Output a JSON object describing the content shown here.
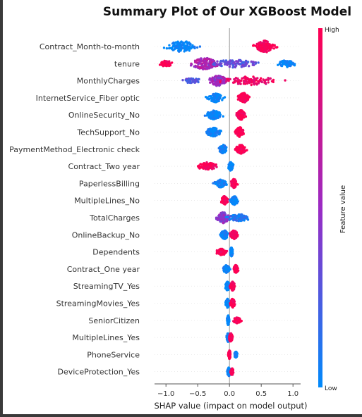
{
  "chart_data": {
    "type": "scatter",
    "title": "Summary Plot of Our XGBoost Model",
    "xlabel": "SHAP value (impact on model output)",
    "xlim": [
      -1.18,
      1.12
    ],
    "xticks": [
      -1.0,
      -0.5,
      0.0,
      0.5,
      1.0
    ],
    "xtick_labels": [
      "−1.0",
      "−0.5",
      "0.0",
      "0.5",
      "1.0"
    ],
    "colorbar": {
      "label": "Feature value",
      "high_label": "High",
      "low_label": "Low",
      "high_color": "#ff0052",
      "mid_color": "#9b2bc4",
      "low_color": "#008afb"
    },
    "features": [
      {
        "name": "Contract_Month-to-month",
        "clusters": [
          [
            -0.75,
            0.22,
            0.8,
            0
          ],
          [
            0.56,
            0.13,
            0.9,
            1
          ]
        ]
      },
      {
        "name": "tenure",
        "clusters": [
          [
            -1.0,
            0.08,
            0.3,
            1
          ],
          [
            -0.4,
            0.18,
            0.9,
            0.6
          ],
          [
            0.1,
            0.35,
            0.5,
            0.3
          ],
          [
            0.9,
            0.1,
            0.4,
            0
          ]
        ]
      },
      {
        "name": "MonthlyCharges",
        "clusters": [
          [
            -0.6,
            0.1,
            0.2,
            0.3
          ],
          [
            -0.18,
            0.12,
            0.8,
            0.5
          ],
          [
            0.35,
            0.35,
            0.6,
            0.9
          ]
        ]
      },
      {
        "name": "InternetService_Fiber optic",
        "clusters": [
          [
            -0.22,
            0.1,
            0.6,
            0
          ],
          [
            0.22,
            0.07,
            0.7,
            1
          ]
        ]
      },
      {
        "name": "OnlineSecurity_No",
        "clusters": [
          [
            -0.25,
            0.1,
            0.6,
            0
          ],
          [
            0.18,
            0.05,
            0.7,
            1
          ]
        ]
      },
      {
        "name": "TechSupport_No",
        "clusters": [
          [
            -0.25,
            0.1,
            0.6,
            0
          ],
          [
            0.16,
            0.05,
            0.7,
            1
          ]
        ]
      },
      {
        "name": "PaymentMethod_Electronic check",
        "clusters": [
          [
            -0.1,
            0.05,
            0.6,
            0
          ],
          [
            0.18,
            0.07,
            0.6,
            1
          ]
        ]
      },
      {
        "name": "Contract_Two year",
        "clusters": [
          [
            -0.35,
            0.12,
            0.5,
            1
          ],
          [
            0.02,
            0.03,
            0.6,
            0
          ]
        ]
      },
      {
        "name": "PaperlessBilling",
        "clusters": [
          [
            -0.14,
            0.07,
            0.5,
            0
          ],
          [
            0.07,
            0.04,
            0.6,
            1
          ]
        ]
      },
      {
        "name": "MultipleLines_No",
        "clusters": [
          [
            -0.08,
            0.04,
            0.6,
            1
          ],
          [
            0.08,
            0.05,
            0.6,
            0
          ]
        ]
      },
      {
        "name": "TotalCharges",
        "clusters": [
          [
            -0.1,
            0.09,
            0.8,
            0.45
          ],
          [
            0.15,
            0.15,
            0.4,
            0.1
          ]
        ]
      },
      {
        "name": "OnlineBackup_No",
        "clusters": [
          [
            -0.08,
            0.05,
            0.6,
            0
          ],
          [
            0.07,
            0.05,
            0.6,
            1
          ]
        ]
      },
      {
        "name": "Dependents",
        "clusters": [
          [
            -0.12,
            0.06,
            0.4,
            1
          ],
          [
            0.03,
            0.02,
            0.6,
            0
          ]
        ]
      },
      {
        "name": "Contract_One year",
        "clusters": [
          [
            -0.05,
            0.04,
            0.5,
            0
          ],
          [
            0.1,
            0.03,
            0.5,
            1
          ]
        ]
      },
      {
        "name": "StreamingTV_Yes",
        "clusters": [
          [
            -0.03,
            0.03,
            0.6,
            0
          ],
          [
            0.05,
            0.03,
            0.6,
            1
          ]
        ]
      },
      {
        "name": "StreamingMovies_Yes",
        "clusters": [
          [
            -0.03,
            0.03,
            0.6,
            0
          ],
          [
            0.05,
            0.03,
            0.6,
            1
          ]
        ]
      },
      {
        "name": "SeniorCitizen",
        "clusters": [
          [
            -0.02,
            0.015,
            0.7,
            0
          ],
          [
            0.12,
            0.05,
            0.3,
            1
          ]
        ]
      },
      {
        "name": "MultipleLines_Yes",
        "clusters": [
          [
            -0.02,
            0.02,
            0.6,
            0
          ],
          [
            0.02,
            0.02,
            0.6,
            1
          ]
        ]
      },
      {
        "name": "PhoneService",
        "clusters": [
          [
            0.0,
            0.015,
            0.6,
            1
          ],
          [
            0.1,
            0.02,
            0.3,
            0
          ]
        ]
      },
      {
        "name": "DeviceProtection_Yes",
        "clusters": [
          [
            -0.01,
            0.02,
            0.6,
            0
          ],
          [
            0.04,
            0.02,
            0.4,
            1
          ]
        ]
      }
    ]
  }
}
